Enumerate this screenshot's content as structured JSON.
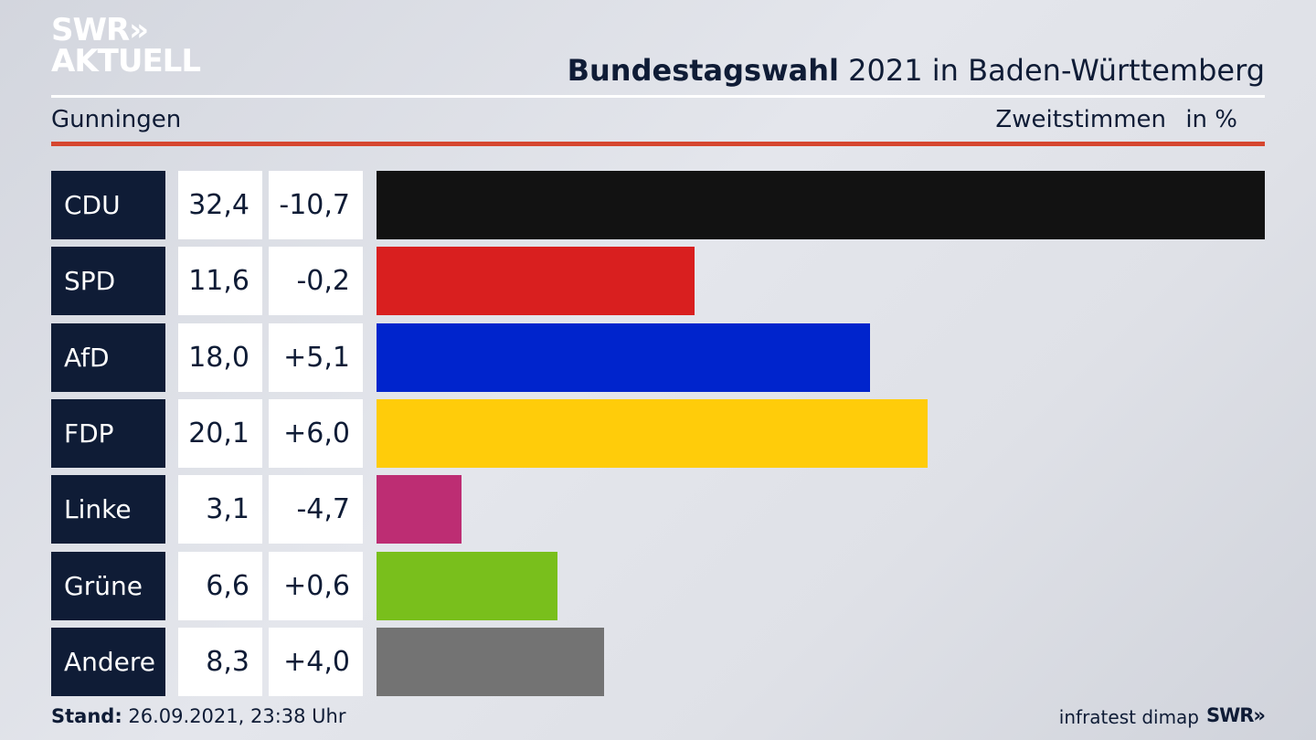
{
  "brand": {
    "line1": "SWR»",
    "line2": "AKTUELL"
  },
  "header": {
    "title_bold": "Bundestagswahl",
    "title_rest": " 2021 in Baden-Württemberg",
    "region": "Gunningen",
    "measure": "Zweitstimmen",
    "unit": "in %"
  },
  "footer": {
    "stand_label": "Stand:",
    "stand_value": " 26.09.2021, 23:38 Uhr",
    "source": "infratest dimap",
    "brand_small": "SWR»"
  },
  "chart_data": {
    "type": "bar",
    "categories": [
      "CDU",
      "SPD",
      "AfD",
      "FDP",
      "Linke",
      "Grüne",
      "Andere"
    ],
    "values": [
      32.4,
      11.6,
      18.0,
      20.1,
      3.1,
      6.6,
      8.3
    ],
    "value_labels": [
      "32,4",
      "11,6",
      "18,0",
      "20,1",
      "3,1",
      "6,6",
      "8,3"
    ],
    "changes": [
      -10.7,
      -0.2,
      5.1,
      6.0,
      -4.7,
      0.6,
      4.0
    ],
    "change_labels": [
      "-10,7",
      "-0,2",
      "+5,1",
      "+6,0",
      "-4,7",
      "+0,6",
      "+4,0"
    ],
    "colors": [
      "#121212",
      "#d91f1f",
      "#0024cc",
      "#ffcc0a",
      "#bd2d73",
      "#79bf1c",
      "#737373"
    ],
    "title": "Bundestagswahl 2021 in Baden-Württemberg",
    "xlim": [
      0,
      32.4
    ]
  }
}
